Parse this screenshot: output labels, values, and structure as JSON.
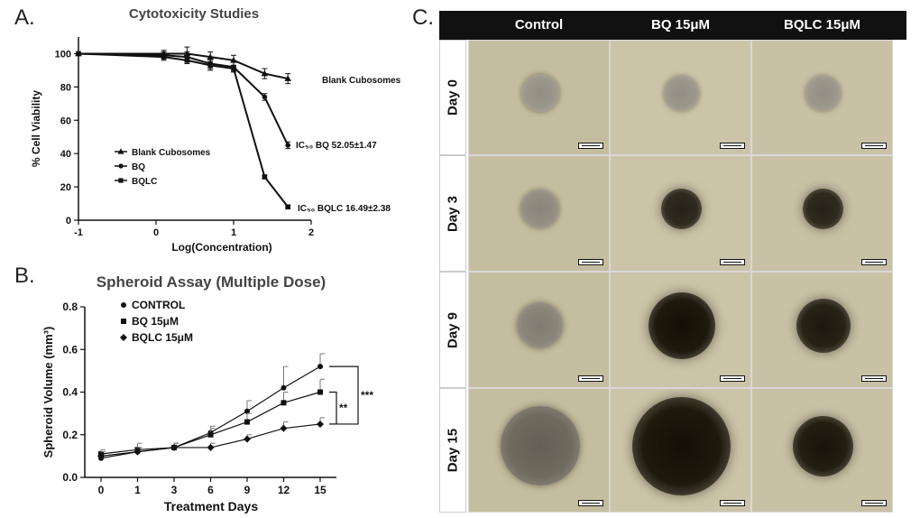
{
  "panel_labels": {
    "a": "A.",
    "b": "B.",
    "c": "C."
  },
  "chart_data": [
    {
      "type": "line",
      "title": "Cytotoxicity Studies",
      "xlabel": "Log(Concentration)",
      "ylabel": "% Cell Viability",
      "xlim": [
        -1,
        2
      ],
      "ylim": [
        0,
        110
      ],
      "xticks": [
        "-1",
        "0",
        "1",
        "2"
      ],
      "yticks": [
        "0",
        "20",
        "40",
        "60",
        "80",
        "100"
      ],
      "legend_position": "bottom-left",
      "series": [
        {
          "name": "Blank Cubosomes",
          "marker": "triangle",
          "x": [
            -1,
            0.1,
            0.4,
            0.7,
            1.0,
            1.4,
            1.7
          ],
          "y": [
            100,
            100,
            100,
            98,
            96,
            88,
            85
          ],
          "err": [
            0,
            2,
            4,
            3,
            3,
            3,
            3
          ]
        },
        {
          "name": "BQ",
          "marker": "circle",
          "x": [
            -1,
            0.1,
            0.4,
            0.7,
            1.0,
            1.4,
            1.7
          ],
          "y": [
            100,
            99,
            98,
            94,
            92,
            74,
            45
          ],
          "err": [
            0,
            2,
            3,
            3,
            3,
            2,
            2
          ]
        },
        {
          "name": "BQLC",
          "marker": "square",
          "x": [
            -1,
            0.1,
            0.4,
            0.7,
            1.0,
            1.4,
            1.7
          ],
          "y": [
            100,
            98,
            96,
            93,
            91,
            26,
            8
          ],
          "err": [
            0,
            2,
            2,
            3,
            2,
            1,
            1
          ]
        }
      ],
      "end_labels": [
        {
          "series": "Blank Cubosomes",
          "text": "Blank Cubosomes"
        },
        {
          "series": "BQ",
          "text": "IC₅₀ BQ 52.05±1.47"
        },
        {
          "series": "BQLC",
          "text": "IC₅₀ BQLC 16.49±2.38"
        }
      ]
    },
    {
      "type": "line",
      "title": "Spheroid Assay (Multiple Dose)",
      "xlabel": "Treatment Days",
      "ylabel": "Spheroid Volume (mm³)",
      "ylim": [
        0,
        0.8
      ],
      "categories": [
        "0",
        "1",
        "3",
        "6",
        "9",
        "12",
        "15"
      ],
      "yticks": [
        "0.0",
        "0.2",
        "0.4",
        "0.6",
        "0.8"
      ],
      "legend_position": "top-left",
      "series": [
        {
          "name": "CONTROL",
          "marker": "circle",
          "values": [
            0.09,
            0.12,
            0.14,
            0.21,
            0.31,
            0.42,
            0.52
          ],
          "err": [
            0.02,
            0.02,
            0.02,
            0.03,
            0.05,
            0.1,
            0.06
          ]
        },
        {
          "name": "BQ 15μM",
          "marker": "square",
          "values": [
            0.11,
            0.13,
            0.14,
            0.2,
            0.26,
            0.35,
            0.4
          ],
          "err": [
            0.02,
            0.03,
            0.02,
            0.03,
            0.04,
            0.05,
            0.06
          ]
        },
        {
          "name": "BQLC 15μM",
          "marker": "diamond",
          "values": [
            0.1,
            0.12,
            0.14,
            0.14,
            0.18,
            0.23,
            0.25
          ],
          "err": [
            0.02,
            0.02,
            0.02,
            0.02,
            0.02,
            0.03,
            0.03
          ]
        }
      ],
      "significance": [
        {
          "label": "***",
          "between": [
            "CONTROL",
            "BQLC 15μM"
          ]
        },
        {
          "label": "**",
          "between": [
            "BQ 15μM",
            "BQLC 15μM"
          ]
        }
      ]
    }
  ],
  "micrograph_grid": {
    "columns": [
      "Control",
      "BQ 15μM",
      "BQLC 15μM"
    ],
    "rows": [
      "Day 0",
      "Day 3",
      "Day 9",
      "Day 15"
    ],
    "spheroid_darkness": [
      [
        0.25,
        0.25,
        0.25
      ],
      [
        0.3,
        0.85,
        0.85
      ],
      [
        0.35,
        0.95,
        0.9
      ],
      [
        0.5,
        0.95,
        0.92
      ]
    ],
    "spheroid_scale": [
      [
        0.3,
        0.28,
        0.28
      ],
      [
        0.3,
        0.32,
        0.32
      ],
      [
        0.36,
        0.52,
        0.42
      ],
      [
        0.58,
        0.72,
        0.44
      ]
    ]
  }
}
